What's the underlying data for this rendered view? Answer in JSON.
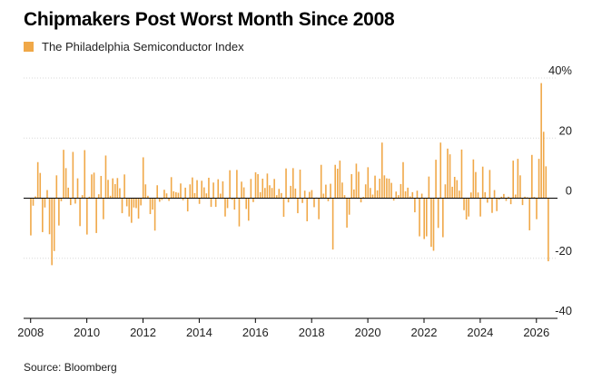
{
  "chart_data": {
    "type": "bar",
    "title": "Chipmakers Post Worst Month Since 2008",
    "legend": [
      "The Philadelphia Semiconductor Index"
    ],
    "source": "Source: Bloomberg",
    "series_color": "#f0a848",
    "ylim": [
      -40,
      40
    ],
    "y_ticks": [
      40,
      20,
      0,
      -20,
      -40
    ],
    "y_tick_labels": [
      "40%",
      "20",
      "0",
      "-20",
      "-40"
    ],
    "x_ticks": [
      2008,
      2010,
      2012,
      2014,
      2016,
      2018,
      2020,
      2022,
      2024,
      2026
    ],
    "x_range": [
      2007.75,
      2026.75
    ],
    "start_year": 2008,
    "start_month": 1,
    "values": [
      -12.4,
      -2.5,
      0.6,
      12.0,
      8.4,
      -11.3,
      -3.1,
      2.7,
      -12.0,
      -22.3,
      -17.6,
      7.6,
      -9.1,
      -1.0,
      16.1,
      10.0,
      3.5,
      -2.3,
      15.4,
      -1.8,
      6.6,
      -9.3,
      1.0,
      16.0,
      -12.1,
      0.5,
      7.9,
      8.5,
      -11.6,
      1.3,
      7.4,
      -7.0,
      14.2,
      6.1,
      0.8,
      6.6,
      4.7,
      6.7,
      3.3,
      -5.0,
      7.9,
      -2.7,
      -6.1,
      -8.2,
      -3.1,
      -3.3,
      -6.8,
      -2.4,
      13.6,
      4.6,
      0.8,
      -5.3,
      -3.8,
      -10.8,
      4.3,
      -1.2,
      -0.6,
      2.8,
      1.6,
      -0.9,
      7.0,
      2.3,
      2.0,
      1.8,
      4.9,
      -0.7,
      3.5,
      -4.4,
      4.6,
      6.9,
      1.7,
      6.0,
      -1.9,
      5.8,
      3.6,
      1.6,
      6.8,
      -2.9,
      5.2,
      -2.9,
      6.3,
      1.5,
      5.6,
      -6.1,
      -3.3,
      9.3,
      -0.5,
      -3.8,
      9.4,
      -9.4,
      5.5,
      3.6,
      -3.6,
      -7.5,
      6.4,
      -1.3,
      8.6,
      8.0,
      2.0,
      6.5,
      3.4,
      8.2,
      4.3,
      3.4,
      6.4,
      1.0,
      3.1,
      1.7,
      -6.2,
      9.9,
      -1.4,
      4.1,
      10.0,
      3.2,
      -5.0,
      9.5,
      -1.6,
      2.5,
      -7.7,
      2.1,
      2.7,
      -3.0,
      0.2,
      -7.0,
      11.1,
      1.5,
      4.5,
      -1.0,
      4.8,
      -17.1,
      11.1,
      9.8,
      12.5,
      5.2,
      1.0,
      -9.8,
      -5.5,
      8.0,
      2.9,
      11.5,
      8.8,
      -1.4,
      0.4,
      4.6,
      10.3,
      3.4,
      1.2,
      7.5,
      2.6,
      6.5,
      18.5,
      7.6,
      6.6,
      6.5,
      5.1,
      -0.8,
      2.2,
      1.0,
      4.7,
      12.0,
      2.3,
      3.5,
      0.6,
      2.0,
      -4.7,
      2.5,
      -12.7,
      1.5,
      -13.6,
      -12.7,
      7.2,
      -16.2,
      -17.5,
      12.8,
      -9.9,
      18.5,
      -13.0,
      4.6,
      16.5,
      14.6,
      3.8,
      7.1,
      6.0,
      2.5,
      16.2,
      -4.0,
      -7.1,
      -6.1,
      1.9,
      12.9,
      8.7,
      1.9,
      -6.1,
      10.5,
      2.0,
      -1.5,
      9.4,
      -4.9,
      2.7,
      -4.3,
      -0.5,
      0.5,
      1.4,
      -0.9,
      0.5,
      -2.0,
      12.5,
      1.2,
      13.1,
      7.6,
      -2.3,
      0.5,
      0.3,
      -10.7,
      14.4,
      0.4,
      -7.0,
      13.1,
      38.3,
      22.1,
      10.6,
      -21.0
    ]
  }
}
